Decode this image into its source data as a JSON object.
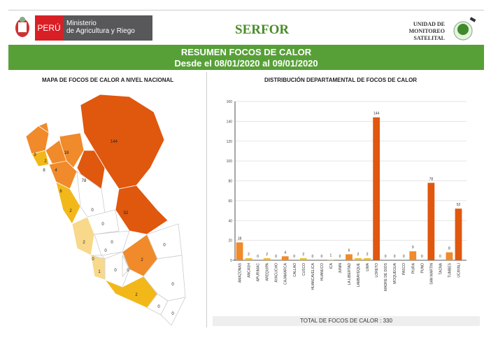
{
  "header": {
    "peru": "PERÚ",
    "ministry_line1": "Ministerio",
    "ministry_line2": "de Agricultura y Riego",
    "serfor": "SERFOR",
    "unit": [
      "UNIDAD DE",
      "MONITOREO",
      "SATELITAL"
    ]
  },
  "banner": {
    "title": "RESUMEN FOCOS DE CALOR",
    "subtitle": "Desde el 08/01/2020 al 09/01/2020"
  },
  "map": {
    "title": "MAPA DE FOCOS DE CALOR A NIVEL NACIONAL",
    "labels": [
      "144",
      "78",
      "52",
      "18",
      "9",
      "8",
      "6",
      "4",
      "2",
      "2",
      "2",
      "2",
      "2",
      "1",
      "0",
      "0",
      "0",
      "0",
      "0",
      "0",
      "0",
      "0",
      "0",
      "0",
      "0"
    ]
  },
  "colors": {
    "high": "#e0570e",
    "mid": "#f08a2a",
    "low": "#f2b81a",
    "vlow": "#f8d88a"
  },
  "chart_data": {
    "type": "bar",
    "title": "DISTRIBUCIÓN DEPARTAMENTAL DE FOCOS DE CALOR",
    "categories": [
      "AMAZONAS",
      "ANCASH",
      "APURIMAC",
      "AREQUIPA",
      "AYACUCHO",
      "CAJAMARCA",
      "CALLAO",
      "CUSCO",
      "HUANCAVELICA",
      "HUANUCO",
      "ICA",
      "JUNIN",
      "LA LIBERTAD",
      "LAMBAYEQUE",
      "LIMA",
      "LORETO",
      "MADRE DE DIOS",
      "MOQUEGUA",
      "PASCO",
      "PIURA",
      "PUNO",
      "SAN MARTIN",
      "TACNA",
      "TUMBES",
      "UCAYALI"
    ],
    "values": [
      18,
      2,
      0,
      2,
      0,
      4,
      0,
      2,
      0,
      0,
      1,
      0,
      6,
      2,
      2,
      144,
      0,
      0,
      0,
      9,
      0,
      78,
      0,
      8,
      52
    ],
    "ylim": [
      0,
      160
    ],
    "yticks": [
      "0",
      "20",
      "40",
      "60",
      "80",
      "100",
      "120",
      "140",
      "160"
    ],
    "grid": true,
    "xlabel": "",
    "ylabel": ""
  },
  "total_label": "TOTAL DE FOCOS DE CALOR : 330"
}
